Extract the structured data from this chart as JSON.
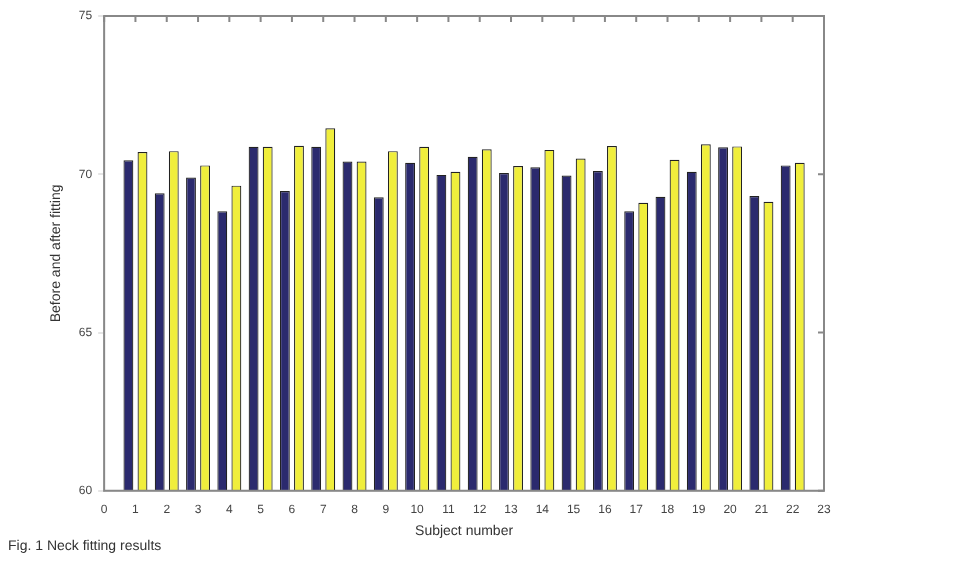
{
  "chart_data": {
    "type": "bar",
    "xlabel": "Subject number",
    "ylabel": "Before and after fitting",
    "x": [
      1,
      2,
      3,
      4,
      5,
      6,
      7,
      8,
      9,
      10,
      11,
      12,
      13,
      14,
      15,
      16,
      17,
      18,
      19,
      20,
      21,
      22
    ],
    "series": [
      {
        "color": "#2b2a6e",
        "values": [
          70.44,
          69.4,
          69.9,
          68.83,
          70.87,
          69.47,
          70.87,
          70.4,
          69.27,
          70.36,
          69.98,
          70.55,
          70.04,
          70.22,
          69.96,
          70.1,
          68.83,
          69.29,
          70.08,
          70.85,
          69.31,
          70.28
        ]
      },
      {
        "color": "#f0ee3c",
        "values": [
          70.7,
          70.73,
          70.28,
          69.64,
          70.87,
          70.9,
          71.45,
          70.4,
          70.73,
          70.87,
          70.08,
          70.79,
          70.26,
          70.77,
          70.5,
          70.89,
          69.1,
          70.46,
          70.95,
          70.88,
          69.13,
          70.36
        ]
      }
    ],
    "xlim": [
      0,
      23
    ],
    "xticks": [
      0,
      1,
      2,
      3,
      4,
      5,
      6,
      7,
      8,
      9,
      10,
      11,
      12,
      13,
      14,
      15,
      16,
      17,
      18,
      19,
      20,
      21,
      22,
      23
    ],
    "ylim": [
      60,
      75
    ],
    "yticks": [
      60,
      65,
      70,
      75
    ],
    "grid": false,
    "legend": false,
    "annotations": [
      "Fig. 1 Neck fitting results"
    ]
  }
}
